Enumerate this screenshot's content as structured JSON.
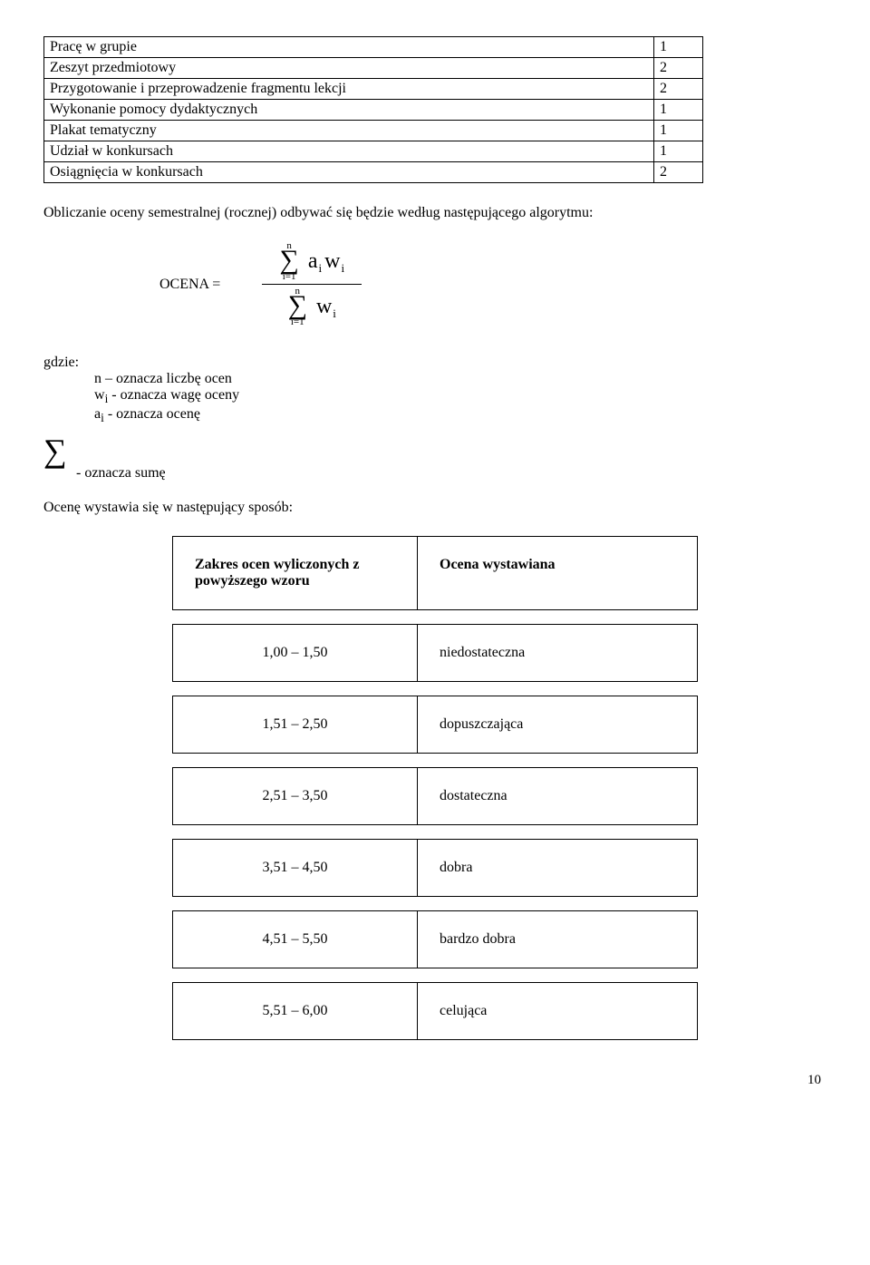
{
  "points_table": {
    "rows": [
      {
        "label": "Pracę w grupie",
        "value": "1"
      },
      {
        "label": "Zeszyt przedmiotowy",
        "value": "2"
      },
      {
        "label": "Przygotowanie i przeprowadzenie fragmentu lekcji",
        "value": "2"
      },
      {
        "label": "Wykonanie pomocy dydaktycznych",
        "value": "1"
      },
      {
        "label": "Plakat tematyczny",
        "value": "1"
      },
      {
        "label": "Udział w konkursach",
        "value": "1"
      },
      {
        "label": "Osiągnięcia w konkursach",
        "value": "2"
      }
    ]
  },
  "intro": "Obliczanie oceny semestralnej (rocznej) odbywać się będzie według następującego algorytmu:",
  "formula": {
    "label": "OCENA =",
    "sum_upper": "n",
    "sum_lower": "i=1",
    "a": "a",
    "w": "w",
    "sub": "i"
  },
  "where": {
    "title": "gdzie:",
    "line1": "n – oznacza liczbę ocen",
    "line2_pre": "w",
    "line2_sub": "i",
    "line2_post": "  - oznacza wagę oceny",
    "line3_pre": "a",
    "line3_sub": "i",
    "line3_post": "  - oznacza ocenę",
    "sum_label": " - oznacza sumę"
  },
  "present_line": "Ocenę wystawia się w następujący sposób:",
  "grades_table": {
    "header_range": "Zakres ocen wyliczonych z powyższego wzoru",
    "header_grade": "Ocena wystawiana",
    "rows": [
      {
        "range": "1,00 – 1,50",
        "grade": "niedostateczna"
      },
      {
        "range": "1,51 – 2,50",
        "grade": "dopuszczająca"
      },
      {
        "range": "2,51 – 3,50",
        "grade": "dostateczna"
      },
      {
        "range": "3,51 – 4,50",
        "grade": "dobra"
      },
      {
        "range": "4,51 – 5,50",
        "grade": "bardzo dobra"
      },
      {
        "range": "5,51 – 6,00",
        "grade": "celująca"
      }
    ]
  },
  "page_number": "10"
}
